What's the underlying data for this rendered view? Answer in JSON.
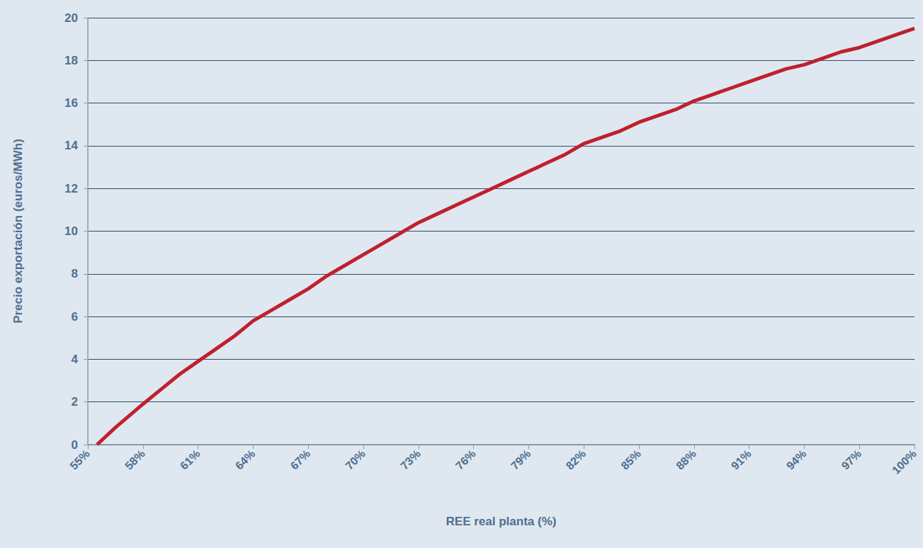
{
  "chart_data": {
    "type": "line",
    "xlabel": "REE real planta (%)",
    "ylabel": "Precio exportación (euros/MWh)",
    "x": [
      55.5,
      56.5,
      58,
      59,
      60,
      61,
      62,
      63,
      64,
      65,
      66,
      67,
      68,
      69,
      70,
      71,
      72,
      73,
      74,
      75,
      76,
      77,
      78,
      79,
      80,
      81,
      82,
      83,
      84,
      85,
      86,
      87,
      88,
      89,
      90,
      91,
      92,
      93,
      94,
      95,
      96,
      97,
      98,
      99,
      100
    ],
    "values": [
      0,
      0.8,
      1.9,
      2.6,
      3.3,
      3.9,
      4.5,
      5.1,
      5.8,
      6.3,
      6.8,
      7.3,
      7.9,
      8.4,
      8.9,
      9.4,
      9.9,
      10.4,
      10.8,
      11.2,
      11.6,
      12.0,
      12.4,
      12.8,
      13.2,
      13.6,
      14.1,
      14.4,
      14.7,
      15.1,
      15.4,
      15.7,
      16.1,
      16.4,
      16.7,
      17.0,
      17.3,
      17.6,
      17.8,
      18.1,
      18.4,
      18.6,
      18.9,
      19.2,
      19.5
    ],
    "color": "#c0202e",
    "xlim": [
      55,
      100
    ],
    "ylim": [
      0,
      20
    ],
    "xticks": [
      {
        "value": 55,
        "label": "55%"
      },
      {
        "value": 58,
        "label": "58%"
      },
      {
        "value": 61,
        "label": "61%"
      },
      {
        "value": 64,
        "label": "64%"
      },
      {
        "value": 67,
        "label": "67%"
      },
      {
        "value": 70,
        "label": "70%"
      },
      {
        "value": 73,
        "label": "73%"
      },
      {
        "value": 76,
        "label": "76%"
      },
      {
        "value": 79,
        "label": "79%"
      },
      {
        "value": 82,
        "label": "82%"
      },
      {
        "value": 85,
        "label": "85%"
      },
      {
        "value": 88,
        "label": "88%"
      },
      {
        "value": 91,
        "label": "91%"
      },
      {
        "value": 94,
        "label": "94%"
      },
      {
        "value": 97,
        "label": "97%"
      },
      {
        "value": 100,
        "label": "100%"
      }
    ],
    "yticks": [
      0,
      2,
      4,
      6,
      8,
      10,
      12,
      14,
      16,
      18,
      20
    ],
    "grid": true
  }
}
